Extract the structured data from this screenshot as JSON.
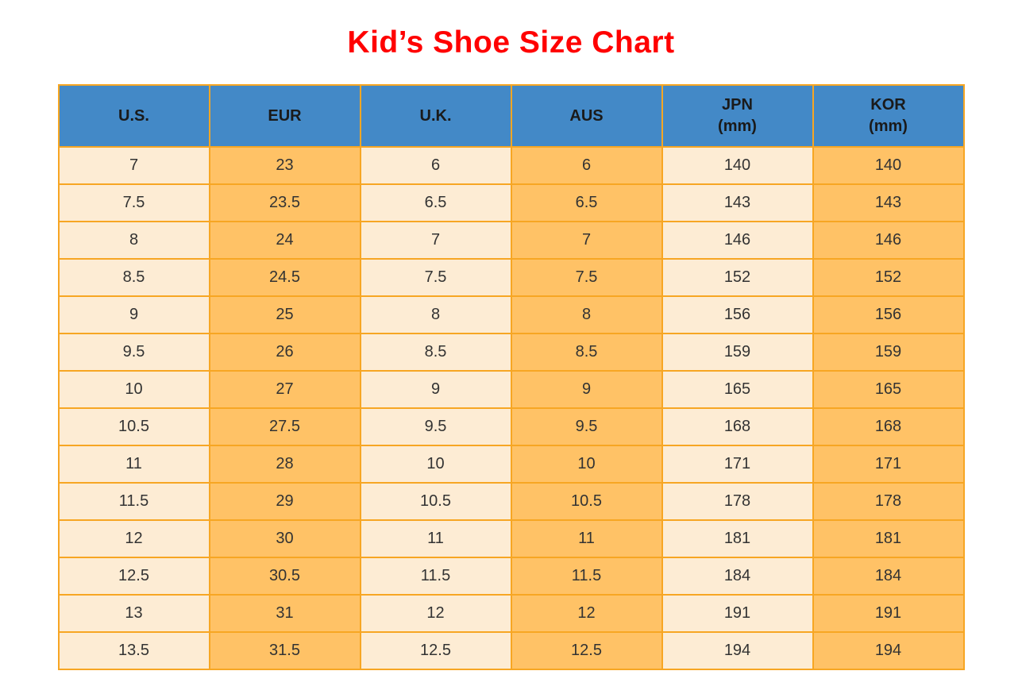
{
  "page": {
    "title": "Kid’s Shoe Size Chart"
  },
  "colors": {
    "title": "#FF0000",
    "header_bg": "#4389C7",
    "header_text": "#1A1A1A",
    "cell_text": "#333333",
    "col_light_bg": "#FDECD4",
    "col_orange_bg": "#FFC266",
    "grid_border": "#F7A623"
  },
  "chart_data": {
    "type": "table",
    "title": "Kid’s Shoe Size Chart",
    "columns": [
      "U.S.",
      "EUR",
      "U.K.",
      "AUS",
      "JPN (mm)",
      "KOR (mm)"
    ],
    "header_lines": [
      [
        "U.S."
      ],
      [
        "EUR"
      ],
      [
        "U.K."
      ],
      [
        "AUS"
      ],
      [
        "JPN",
        "(mm)"
      ],
      [
        "KOR",
        "(mm)"
      ]
    ],
    "column_styles": [
      "light",
      "orange",
      "light",
      "orange",
      "light",
      "orange"
    ],
    "rows": [
      [
        "7",
        "23",
        "6",
        "6",
        "140",
        "140"
      ],
      [
        "7.5",
        "23.5",
        "6.5",
        "6.5",
        "143",
        "143"
      ],
      [
        "8",
        "24",
        "7",
        "7",
        "146",
        "146"
      ],
      [
        "8.5",
        "24.5",
        "7.5",
        "7.5",
        "152",
        "152"
      ],
      [
        "9",
        "25",
        "8",
        "8",
        "156",
        "156"
      ],
      [
        "9.5",
        "26",
        "8.5",
        "8.5",
        "159",
        "159"
      ],
      [
        "10",
        "27",
        "9",
        "9",
        "165",
        "165"
      ],
      [
        "10.5",
        "27.5",
        "9.5",
        "9.5",
        "168",
        "168"
      ],
      [
        "11",
        "28",
        "10",
        "10",
        "171",
        "171"
      ],
      [
        "11.5",
        "29",
        "10.5",
        "10.5",
        "178",
        "178"
      ],
      [
        "12",
        "30",
        "11",
        "11",
        "181",
        "181"
      ],
      [
        "12.5",
        "30.5",
        "11.5",
        "11.5",
        "184",
        "184"
      ],
      [
        "13",
        "31",
        "12",
        "12",
        "191",
        "191"
      ],
      [
        "13.5",
        "31.5",
        "12.5",
        "12.5",
        "194",
        "194"
      ]
    ]
  }
}
